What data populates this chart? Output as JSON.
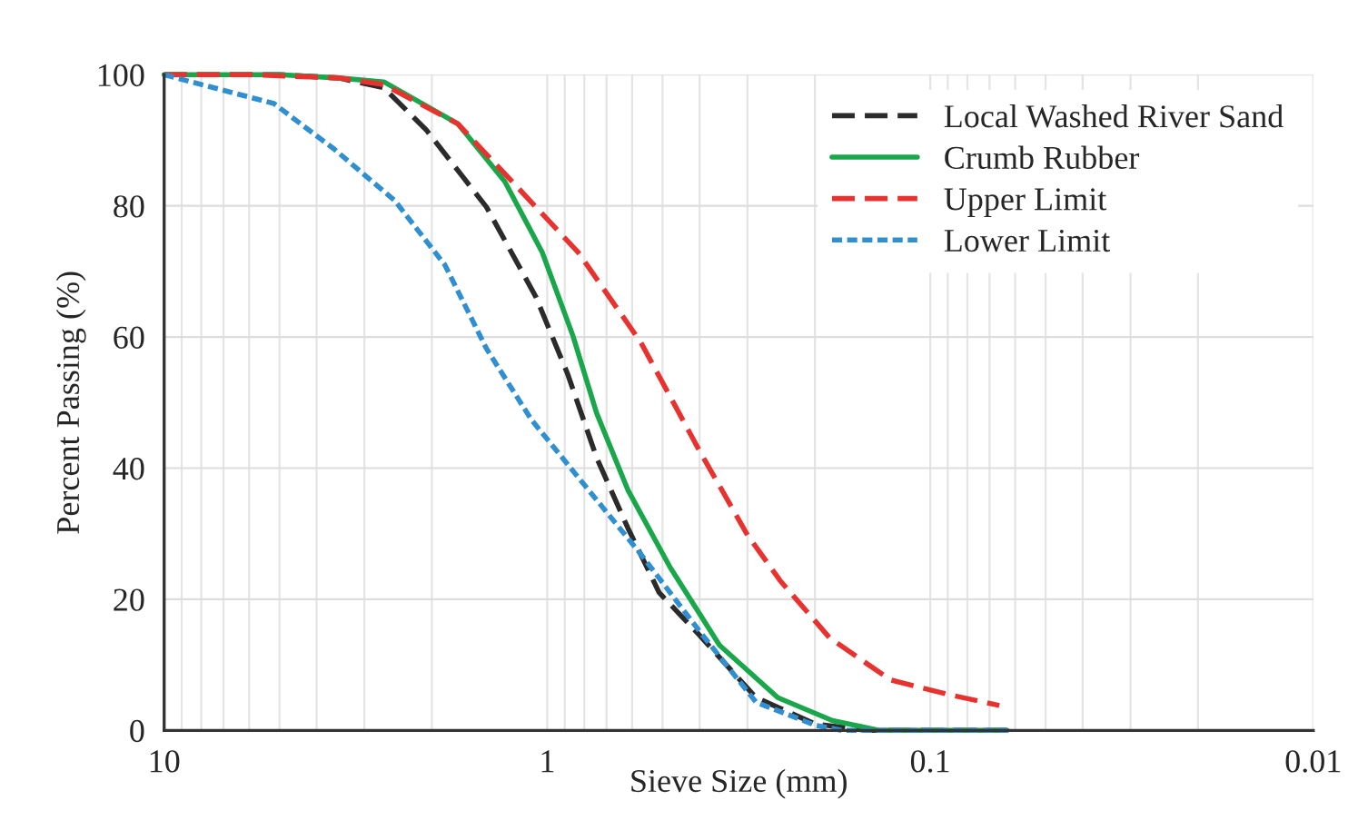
{
  "chart_data": {
    "type": "line",
    "xlabel": "Sieve Size (mm)",
    "ylabel": "Percent Passing (%)",
    "log": "x",
    "xlim": [
      10,
      0.01
    ],
    "xticks": [
      10,
      1,
      0.1,
      0.01
    ],
    "ylim": [
      0,
      100
    ],
    "yticks": [
      0,
      20,
      40,
      60,
      80,
      100
    ],
    "grid": true,
    "legend": "top right",
    "series": [
      {
        "name": "Local Washed River Sand",
        "color": "#2b2b2b",
        "line_style": "dashed",
        "x": [
          10,
          5,
          3.5,
          2.67,
          2.07,
          1.44,
          1.07,
          0.885,
          0.743,
          0.616,
          0.51,
          0.4,
          0.285,
          0.2,
          0.147,
          0.1,
          0.063
        ],
        "values": [
          100,
          100,
          99.5,
          98,
          91.6,
          79.8,
          66.1,
          54.4,
          41.6,
          30.9,
          21,
          14.5,
          5,
          1,
          0,
          0,
          0
        ]
      },
      {
        "name": "Crumb Rubber",
        "color": "#1aa64a",
        "line_style": "solid",
        "x": [
          10,
          5,
          3.5,
          2.67,
          1.71,
          1.29,
          1.03,
          0.857,
          0.743,
          0.616,
          0.478,
          0.355,
          0.25,
          0.18,
          0.136,
          0.1,
          0.063
        ],
        "values": [
          100,
          100,
          99.5,
          98.9,
          92.5,
          83.7,
          72.9,
          60.2,
          48.4,
          36.7,
          24.9,
          13,
          5,
          1.5,
          0,
          0,
          0
        ]
      },
      {
        "name": "Upper Limit",
        "color": "#e8322f",
        "line_style": "dashed",
        "x": [
          10,
          6,
          3.5,
          2.67,
          1.71,
          1.19,
          0.83,
          0.57,
          0.4,
          0.3,
          0.247,
          0.183,
          0.127,
          0.09,
          0.066
        ],
        "values": [
          100,
          100,
          99.5,
          98.5,
          92.5,
          82.7,
          72.9,
          59.2,
          42.6,
          29.8,
          22.9,
          14.1,
          7.7,
          5.5,
          3.8
        ]
      },
      {
        "name": "Lower Limit",
        "color": "#2f8fd0",
        "line_style": "dotted",
        "x": [
          10,
          5.17,
          3.59,
          2.5,
          1.85,
          1.44,
          1.1,
          0.83,
          0.57,
          0.4,
          0.285,
          0.2,
          0.17,
          0.1,
          0.063
        ],
        "values": [
          100,
          95.6,
          88.6,
          80.8,
          71,
          58.2,
          47.4,
          38.6,
          26.9,
          15.1,
          4.3,
          0.8,
          0,
          0,
          0
        ]
      }
    ]
  }
}
